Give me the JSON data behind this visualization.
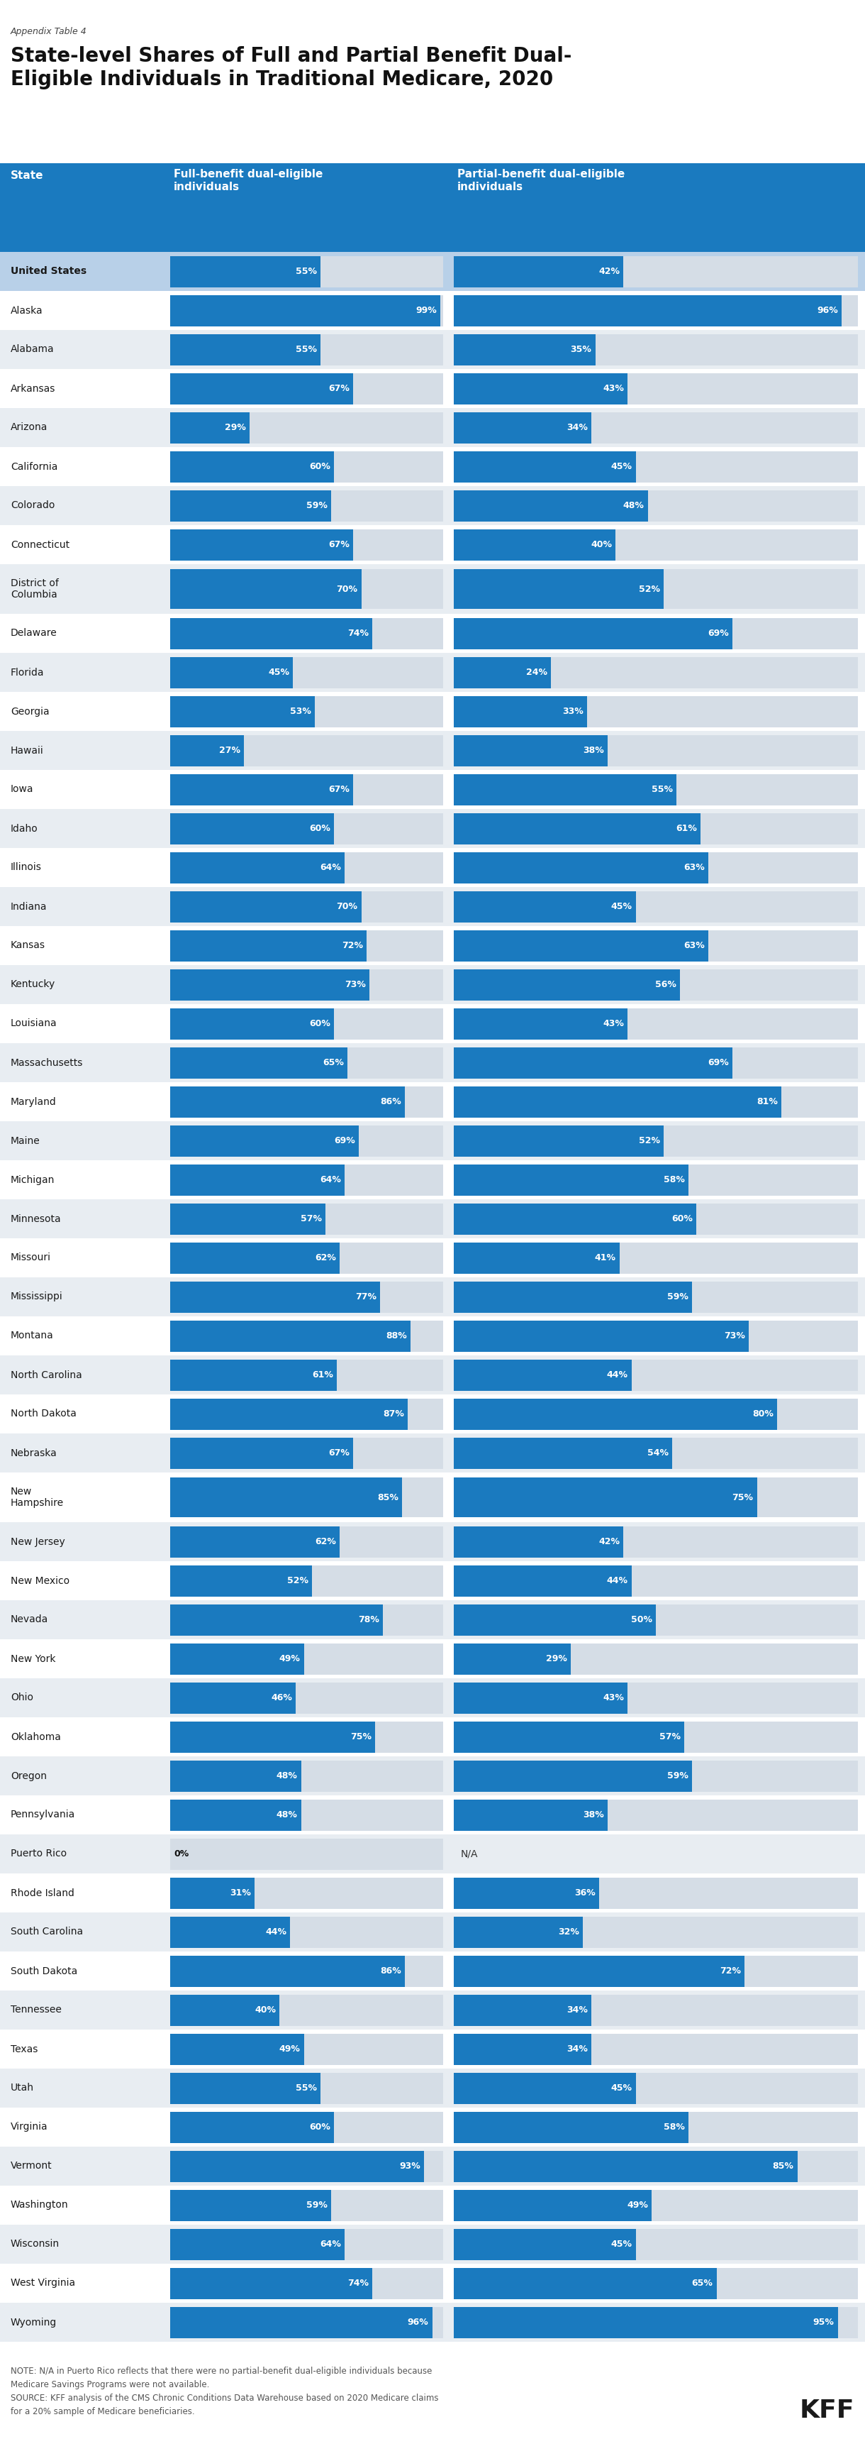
{
  "appendix_label": "Appendix Table 4",
  "title": "State-level Shares of Full and Partial Benefit Dual-\nEligible Individuals in Traditional Medicare, 2020",
  "col1_header": "Full-benefit dual-eligible\nindividuals",
  "col2_header": "Partial-benefit dual-eligible\nindividuals",
  "states": [
    "United States",
    "Alaska",
    "Alabama",
    "Arkansas",
    "Arizona",
    "California",
    "Colorado",
    "Connecticut",
    "District of\nColumbia",
    "Delaware",
    "Florida",
    "Georgia",
    "Hawaii",
    "Iowa",
    "Idaho",
    "Illinois",
    "Indiana",
    "Kansas",
    "Kentucky",
    "Louisiana",
    "Massachusetts",
    "Maryland",
    "Maine",
    "Michigan",
    "Minnesota",
    "Missouri",
    "Mississippi",
    "Montana",
    "North Carolina",
    "North Dakota",
    "Nebraska",
    "New\nHampshire",
    "New Jersey",
    "New Mexico",
    "Nevada",
    "New York",
    "Ohio",
    "Oklahoma",
    "Oregon",
    "Pennsylvania",
    "Puerto Rico",
    "Rhode Island",
    "South Carolina",
    "South Dakota",
    "Tennessee",
    "Texas",
    "Utah",
    "Virginia",
    "Vermont",
    "Washington",
    "Wisconsin",
    "West Virginia",
    "Wyoming"
  ],
  "full_benefit": [
    55,
    99,
    55,
    67,
    29,
    60,
    59,
    67,
    70,
    74,
    45,
    53,
    27,
    67,
    60,
    64,
    70,
    72,
    73,
    60,
    65,
    86,
    69,
    64,
    57,
    62,
    77,
    88,
    61,
    87,
    67,
    85,
    62,
    52,
    78,
    49,
    46,
    75,
    48,
    48,
    0,
    31,
    44,
    86,
    40,
    49,
    55,
    60,
    93,
    59,
    64,
    74,
    96
  ],
  "partial_benefit": [
    42,
    96,
    35,
    43,
    34,
    45,
    48,
    40,
    52,
    69,
    24,
    33,
    38,
    55,
    61,
    63,
    45,
    63,
    56,
    43,
    69,
    81,
    52,
    58,
    60,
    41,
    59,
    73,
    44,
    80,
    54,
    75,
    42,
    44,
    50,
    29,
    43,
    57,
    59,
    38,
    -1,
    36,
    32,
    72,
    34,
    34,
    45,
    58,
    85,
    49,
    45,
    65,
    95
  ],
  "header_bg": "#1a7abf",
  "bar_color": "#1a7abf",
  "bar_bg_even": "#e0e0e0",
  "bar_bg_odd": "#d0d8e0",
  "us_row_bg": "#b8cfe0",
  "odd_row_bg": "#e8edf2",
  "even_row_bg": "#f5f5f5",
  "white_row_bg": "#ffffff",
  "note": "NOTE: N/A in Puerto Rico reflects that there were no partial-benefit dual-eligible individuals because\nMedicare Savings Programs were not available.\nSOURCE: KFF analysis of the CMS Chronic Conditions Data Warehouse based on 2020 Medicare claims\nfor a 20% sample of Medicare beneficiaries."
}
